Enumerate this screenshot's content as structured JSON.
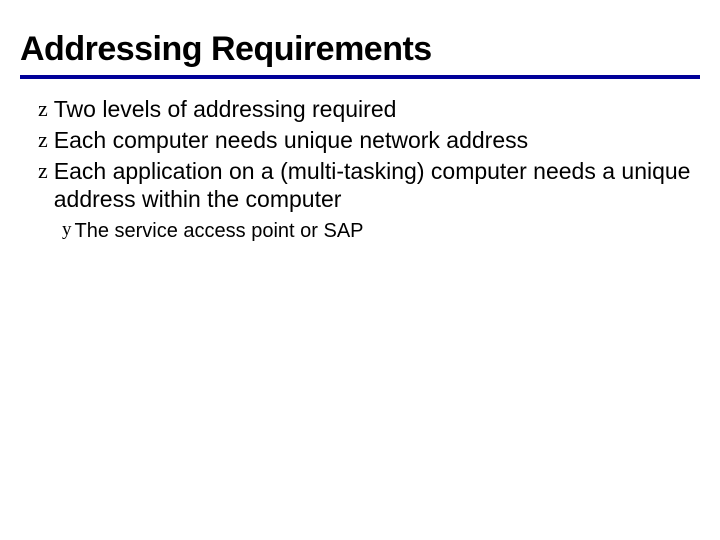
{
  "slide": {
    "title": "Addressing Requirements",
    "title_fontsize": 34,
    "title_fontweight": 900,
    "underline_color": "#000099",
    "underline_width": 4,
    "background_color": "#ffffff",
    "text_color": "#000000",
    "bullets": [
      {
        "marker": "z",
        "text": "Two levels of addressing required"
      },
      {
        "marker": "z",
        "text": "Each computer needs unique network address"
      },
      {
        "marker": "z",
        "text": "Each application on a (multi-tasking) computer needs a unique address within the computer"
      }
    ],
    "sub_bullets": [
      {
        "marker": "y",
        "text": "The service access point or SAP"
      }
    ],
    "bullet_fontsize": 23,
    "sub_bullet_fontsize": 20
  }
}
